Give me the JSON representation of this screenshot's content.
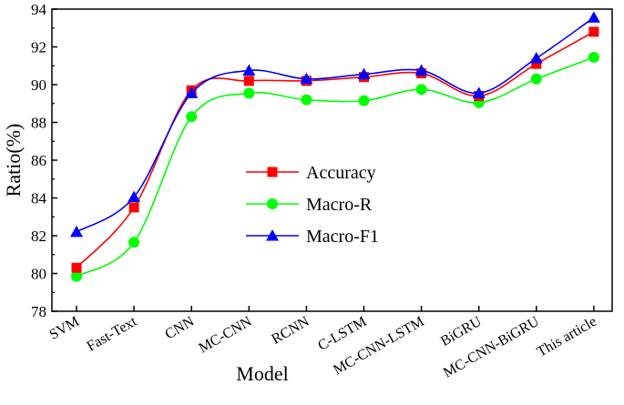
{
  "chart_data": {
    "type": "line",
    "title": "",
    "xlabel": "Model",
    "ylabel": "Ratio(%)",
    "ylim": [
      78,
      94
    ],
    "yticks": [
      78,
      80,
      82,
      84,
      86,
      88,
      90,
      92,
      94
    ],
    "grid": false,
    "legend_position": "center-left",
    "categories": [
      "SVM",
      "Fast-Text",
      "CNN",
      "MC-CNN",
      "RCNN",
      "C-LSTM",
      "MC-CNN-LSTM",
      "BiGRU",
      "MC-CNN-BiGRU",
      "This article"
    ],
    "series": [
      {
        "name": "Accuracy",
        "color": "#ff0000",
        "marker": "square",
        "values": [
          80.3,
          83.5,
          89.7,
          90.2,
          90.2,
          90.4,
          90.6,
          89.4,
          91.1,
          92.8
        ]
      },
      {
        "name": "Macro-R",
        "color": "#00ff00",
        "marker": "circle",
        "values": [
          79.85,
          81.65,
          88.3,
          89.55,
          89.2,
          89.15,
          89.75,
          89.05,
          90.3,
          91.45
        ]
      },
      {
        "name": "Macro-F1",
        "color": "#0000ff",
        "marker": "triangle",
        "values": [
          82.2,
          84.05,
          89.55,
          90.75,
          90.3,
          90.55,
          90.75,
          89.55,
          91.4,
          93.55
        ]
      }
    ]
  }
}
